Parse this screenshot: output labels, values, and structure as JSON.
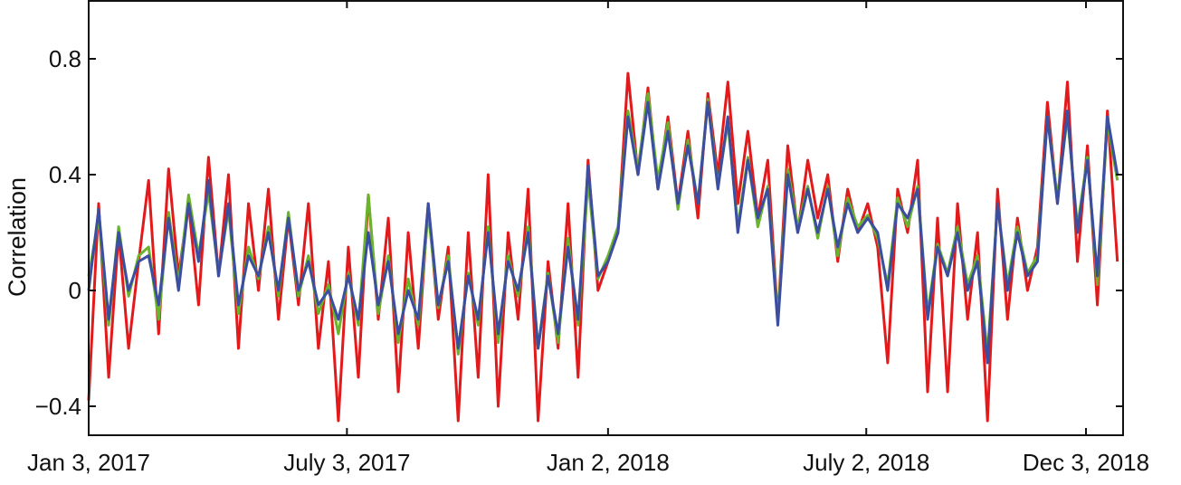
{
  "chart_data": {
    "type": "line",
    "title": "",
    "xlabel": "",
    "ylabel": "Correlation",
    "ylim": [
      -0.5,
      1.0
    ],
    "xlim": [
      "2017-01-03",
      "2018-12-29"
    ],
    "yticks": [
      {
        "value": 0.8,
        "label": "0.8"
      },
      {
        "value": 0.4,
        "label": "0.4"
      },
      {
        "value": 0,
        "label": "0"
      },
      {
        "value": -0.4,
        "label": "−0.4"
      }
    ],
    "xticks": [
      {
        "date": "2017-01-03",
        "label": "Jan 3, 2017"
      },
      {
        "date": "2017-07-03",
        "label": "July 3, 2017"
      },
      {
        "date": "2018-01-02",
        "label": "Jan 2, 2018"
      },
      {
        "date": "2018-07-02",
        "label": "July 2, 2018"
      },
      {
        "date": "2018-12-03",
        "label": "Dec 3, 2018"
      }
    ],
    "grid": false,
    "legend": "none",
    "dates": [
      "2017-01-03",
      "2017-01-10",
      "2017-01-17",
      "2017-01-24",
      "2017-01-31",
      "2017-02-07",
      "2017-02-14",
      "2017-02-21",
      "2017-02-28",
      "2017-03-07",
      "2017-03-14",
      "2017-03-21",
      "2017-03-28",
      "2017-04-04",
      "2017-04-11",
      "2017-04-18",
      "2017-04-25",
      "2017-05-02",
      "2017-05-09",
      "2017-05-16",
      "2017-05-23",
      "2017-05-30",
      "2017-06-06",
      "2017-06-13",
      "2017-06-20",
      "2017-06-27",
      "2017-07-04",
      "2017-07-11",
      "2017-07-18",
      "2017-07-25",
      "2017-08-01",
      "2017-08-08",
      "2017-08-15",
      "2017-08-22",
      "2017-08-29",
      "2017-09-05",
      "2017-09-12",
      "2017-09-19",
      "2017-09-26",
      "2017-10-03",
      "2017-10-10",
      "2017-10-17",
      "2017-10-24",
      "2017-10-31",
      "2017-11-07",
      "2017-11-14",
      "2017-11-21",
      "2017-11-28",
      "2017-12-05",
      "2017-12-12",
      "2017-12-19",
      "2017-12-26",
      "2018-01-02",
      "2018-01-09",
      "2018-01-16",
      "2018-01-23",
      "2018-01-30",
      "2018-02-06",
      "2018-02-13",
      "2018-02-20",
      "2018-02-27",
      "2018-03-06",
      "2018-03-13",
      "2018-03-20",
      "2018-03-27",
      "2018-04-03",
      "2018-04-10",
      "2018-04-17",
      "2018-04-24",
      "2018-05-01",
      "2018-05-08",
      "2018-05-15",
      "2018-05-22",
      "2018-05-29",
      "2018-06-05",
      "2018-06-12",
      "2018-06-19",
      "2018-06-26",
      "2018-07-03",
      "2018-07-10",
      "2018-07-17",
      "2018-07-24",
      "2018-07-31",
      "2018-08-07",
      "2018-08-14",
      "2018-08-21",
      "2018-08-28",
      "2018-09-04",
      "2018-09-11",
      "2018-09-18",
      "2018-09-25",
      "2018-10-02",
      "2018-10-09",
      "2018-10-16",
      "2018-10-23",
      "2018-10-30",
      "2018-11-06",
      "2018-11-13",
      "2018-11-20",
      "2018-11-27",
      "2018-12-04",
      "2018-12-11",
      "2018-12-18",
      "2018-12-25"
    ],
    "series": [
      {
        "color": "#e31a1c",
        "values": [
          -0.38,
          0.3,
          -0.3,
          0.2,
          -0.2,
          0.1,
          0.38,
          -0.15,
          0.42,
          0.05,
          0.3,
          -0.05,
          0.46,
          0.05,
          0.4,
          -0.2,
          0.3,
          0.0,
          0.35,
          -0.1,
          0.25,
          -0.05,
          0.3,
          -0.2,
          0.1,
          -0.45,
          0.15,
          -0.3,
          0.33,
          -0.1,
          0.25,
          -0.35,
          0.2,
          -0.2,
          0.3,
          -0.1,
          0.15,
          -0.45,
          0.2,
          -0.3,
          0.4,
          -0.4,
          0.2,
          -0.1,
          0.35,
          -0.45,
          0.1,
          -0.2,
          0.3,
          -0.3,
          0.45,
          0.0,
          0.1,
          0.2,
          0.75,
          0.4,
          0.7,
          0.35,
          0.6,
          0.3,
          0.55,
          0.25,
          0.68,
          0.4,
          0.72,
          0.3,
          0.55,
          0.25,
          0.45,
          -0.1,
          0.5,
          0.2,
          0.45,
          0.25,
          0.4,
          0.1,
          0.35,
          0.2,
          0.3,
          0.15,
          -0.25,
          0.35,
          0.2,
          0.45,
          -0.35,
          0.25,
          -0.35,
          0.3,
          -0.1,
          0.2,
          -0.45,
          0.35,
          -0.1,
          0.25,
          0.0,
          0.15,
          0.65,
          0.3,
          0.72,
          0.1,
          0.5,
          -0.05,
          0.62,
          0.1
        ]
      },
      {
        "color": "#6ab42d",
        "values": [
          0.05,
          0.25,
          -0.12,
          0.22,
          -0.02,
          0.12,
          0.15,
          -0.1,
          0.27,
          0.02,
          0.33,
          0.12,
          0.34,
          0.06,
          0.28,
          -0.08,
          0.15,
          0.04,
          0.22,
          -0.02,
          0.27,
          -0.02,
          0.12,
          -0.08,
          0.02,
          -0.15,
          0.06,
          -0.12,
          0.33,
          -0.08,
          0.12,
          -0.18,
          0.04,
          -0.12,
          0.27,
          -0.06,
          0.12,
          -0.22,
          0.06,
          -0.12,
          0.22,
          -0.18,
          0.12,
          -0.02,
          0.22,
          -0.2,
          0.06,
          -0.18,
          0.18,
          -0.12,
          0.38,
          0.04,
          0.12,
          0.22,
          0.62,
          0.42,
          0.68,
          0.38,
          0.58,
          0.28,
          0.52,
          0.3,
          0.66,
          0.36,
          0.58,
          0.22,
          0.46,
          0.22,
          0.36,
          -0.1,
          0.42,
          0.22,
          0.36,
          0.18,
          0.36,
          0.12,
          0.32,
          0.22,
          0.26,
          0.18,
          0.02,
          0.32,
          0.22,
          0.36,
          -0.08,
          0.16,
          0.06,
          0.22,
          0.02,
          0.12,
          -0.22,
          0.3,
          0.02,
          0.22,
          0.06,
          0.12,
          0.6,
          0.32,
          0.6,
          0.22,
          0.46,
          0.02,
          0.58,
          0.38
        ]
      },
      {
        "color": "#3b4ea0",
        "values": [
          0.0,
          0.28,
          -0.1,
          0.2,
          0.0,
          0.1,
          0.12,
          -0.05,
          0.25,
          0.0,
          0.3,
          0.1,
          0.38,
          0.05,
          0.3,
          -0.05,
          0.12,
          0.05,
          0.2,
          0.0,
          0.25,
          0.0,
          0.1,
          -0.05,
          0.0,
          -0.1,
          0.05,
          -0.1,
          0.2,
          -0.05,
          0.1,
          -0.15,
          0.0,
          -0.1,
          0.3,
          -0.05,
          0.1,
          -0.2,
          0.05,
          -0.1,
          0.2,
          -0.15,
          0.1,
          0.0,
          0.2,
          -0.2,
          0.05,
          -0.15,
          0.15,
          -0.1,
          0.43,
          0.05,
          0.1,
          0.2,
          0.6,
          0.4,
          0.65,
          0.35,
          0.55,
          0.3,
          0.5,
          0.3,
          0.65,
          0.35,
          0.6,
          0.2,
          0.45,
          0.25,
          0.35,
          -0.12,
          0.4,
          0.2,
          0.35,
          0.2,
          0.35,
          0.15,
          0.3,
          0.2,
          0.25,
          0.2,
          0.0,
          0.3,
          0.25,
          0.35,
          -0.1,
          0.15,
          0.05,
          0.2,
          0.0,
          0.1,
          -0.25,
          0.3,
          0.0,
          0.2,
          0.05,
          0.1,
          0.6,
          0.3,
          0.62,
          0.2,
          0.45,
          0.05,
          0.6,
          0.4
        ]
      }
    ]
  }
}
